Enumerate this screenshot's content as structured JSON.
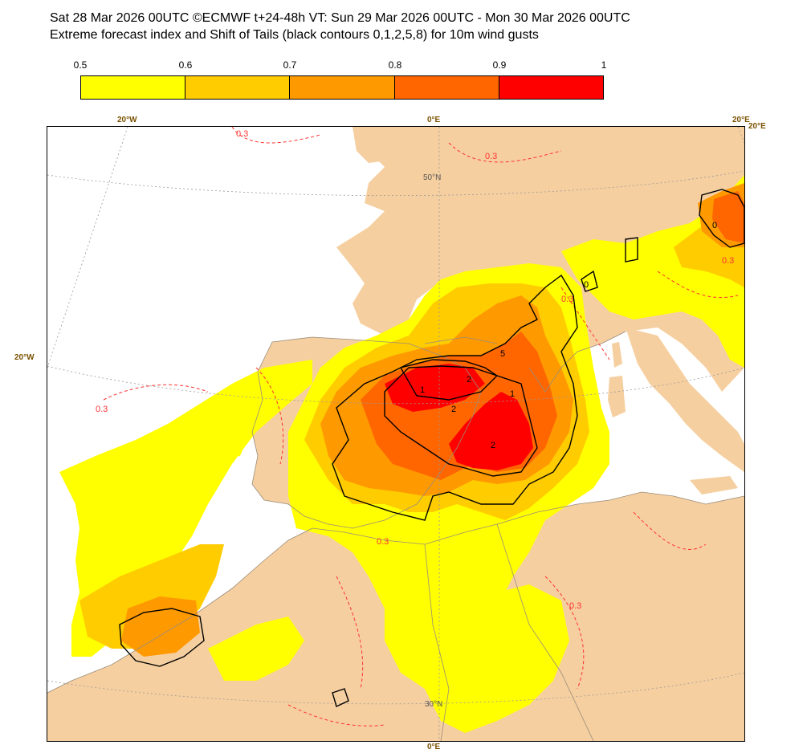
{
  "header": {
    "line1": "Sat 28 Mar 2026 00UTC ©ECMWF t+24-48h  VT: Sun 29 Mar 2026 00UTC - Mon 30 Mar 2026 00UTC",
    "line2": "Extreme forecast index and Shift of Tails (black contours 0,1,2,5,8) for 10m wind gusts"
  },
  "legend": {
    "ticks": [
      "0.5",
      "0.6",
      "0.7",
      "0.8",
      "0.9",
      "1"
    ],
    "colors": [
      "#ffff00",
      "#ffcc00",
      "#ff9900",
      "#ff6600",
      "#ff0000"
    ]
  },
  "map": {
    "land_color": "#f6cfa0",
    "sea_color": "#ffffff",
    "graticule_labels": {
      "top_20w": "20°W",
      "top_0": "0°E",
      "top_20e_a": "20°E",
      "top_20e_b": "20°E",
      "left_20w": "20°W",
      "lat_50n": "50°N",
      "lat_30n": "30°N",
      "bottom_0": "0°E"
    },
    "contour_labels": {
      "sot_1a": "1",
      "sot_1b": "1",
      "sot_2a": "2",
      "sot_2b": "2",
      "sot_2c": "2",
      "sot_5": "5",
      "sot_0a": "0",
      "sot_0b": "0",
      "efi_03a": "0.3",
      "efi_03b": "0.3",
      "efi_03c": "0.3",
      "efi_03d": "0.3",
      "efi_03e": "0.3",
      "efi_03f": "0.3",
      "efi_03g": "0.3"
    }
  }
}
